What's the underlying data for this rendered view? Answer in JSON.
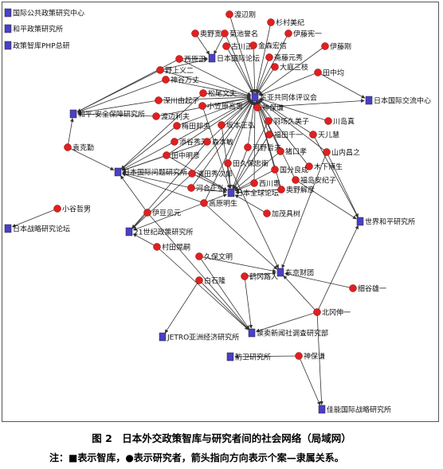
{
  "caption": "图 2　日本外交政策智库与研究者间的社会网络（局域网）",
  "note": "注：■表示智库，●表示研究者，箭头指向方向表示个案—隶属关系。",
  "colors": {
    "org": "#4a3fc6",
    "person": "#e02020",
    "edge": "#333333"
  },
  "nodes": [
    {
      "id": "o1",
      "type": "org",
      "label": "国际公共政策研究中心"
    },
    {
      "id": "o2",
      "type": "org",
      "label": "和平政策研究所"
    },
    {
      "id": "o3",
      "type": "org",
      "label": "政策智库PHP总研"
    },
    {
      "id": "o4",
      "type": "org",
      "label": "日本国际论坛"
    },
    {
      "id": "o5",
      "type": "org",
      "label": "东亚共同体评议会"
    },
    {
      "id": "o6",
      "type": "org",
      "label": "日本国际交流中心"
    },
    {
      "id": "o7",
      "type": "org",
      "label": "和平·安全保障研究所"
    },
    {
      "id": "o8",
      "type": "org",
      "label": "日本国际问题研究所"
    },
    {
      "id": "o9",
      "type": "org",
      "label": "日本全球论坛"
    },
    {
      "id": "o10",
      "type": "org",
      "label": "日本战略研究论坛"
    },
    {
      "id": "o11",
      "type": "org",
      "label": "21世纪政策研究所"
    },
    {
      "id": "o12",
      "type": "org",
      "label": "世界和平研究所"
    },
    {
      "id": "o13",
      "type": "org",
      "label": "东京财团"
    },
    {
      "id": "o14",
      "type": "org",
      "label": "JETRO亚洲经济研究所"
    },
    {
      "id": "o15",
      "type": "org",
      "label": "读卖新闻社调查研究部"
    },
    {
      "id": "o16",
      "type": "org",
      "label": "防卫研究所"
    },
    {
      "id": "o17",
      "type": "org",
      "label": "佳能国际战略研究所"
    },
    {
      "id": "p1",
      "type": "person",
      "label": "渡辺刚"
    },
    {
      "id": "p2",
      "type": "person",
      "label": "杉村美纪"
    },
    {
      "id": "p3",
      "type": "person",
      "label": "奥野宽"
    },
    {
      "id": "p4",
      "type": "person",
      "label": "菊池誉名"
    },
    {
      "id": "p5",
      "type": "person",
      "label": "伊藤宪一"
    },
    {
      "id": "p6",
      "type": "person",
      "label": "古川正"
    },
    {
      "id": "p7",
      "type": "person",
      "label": "金森宏信"
    },
    {
      "id": "p8",
      "type": "person",
      "label": "伊藤刚"
    },
    {
      "id": "p9",
      "type": "person",
      "label": "斋藤元秀"
    },
    {
      "id": "p10",
      "type": "person",
      "label": "西原正"
    },
    {
      "id": "p11",
      "type": "person",
      "label": "大庭三枝"
    },
    {
      "id": "p12",
      "type": "person",
      "label": "野上义二"
    },
    {
      "id": "p13",
      "type": "person",
      "label": "田中均"
    },
    {
      "id": "p14",
      "type": "person",
      "label": "神谷万丈"
    },
    {
      "id": "p15",
      "type": "person",
      "label": "松尾文夫"
    },
    {
      "id": "p16",
      "type": "person",
      "label": "深川由起子"
    },
    {
      "id": "p17",
      "type": "person",
      "label": "小笠原高雪"
    },
    {
      "id": "p18",
      "type": "person",
      "label": "神保谦"
    },
    {
      "id": "p19",
      "type": "person",
      "label": "川岛真"
    },
    {
      "id": "p20",
      "type": "person",
      "label": "渡边利夫"
    },
    {
      "id": "p21",
      "type": "person",
      "label": "坂本正弘"
    },
    {
      "id": "p22",
      "type": "person",
      "label": "羽场久美子"
    },
    {
      "id": "p23",
      "type": "person",
      "label": "梅田邦夫"
    },
    {
      "id": "p24",
      "type": "person",
      "label": "福田千一"
    },
    {
      "id": "p25",
      "type": "person",
      "label": "天儿慧"
    },
    {
      "id": "p26",
      "type": "person",
      "label": "袁克勤"
    },
    {
      "id": "p27",
      "type": "person",
      "label": "添谷秀芳"
    },
    {
      "id": "p28",
      "type": "person",
      "label": "森本敏"
    },
    {
      "id": "p29",
      "type": "person",
      "label": "河野哲夫"
    },
    {
      "id": "p30",
      "type": "person",
      "label": "猪口孝"
    },
    {
      "id": "p31",
      "type": "person",
      "label": "山内昌之"
    },
    {
      "id": "p32",
      "type": "person",
      "label": "田中明彦"
    },
    {
      "id": "p33",
      "type": "person",
      "label": "田久保忠衛"
    },
    {
      "id": "p34",
      "type": "person",
      "label": "国分良成"
    },
    {
      "id": "p35",
      "type": "person",
      "label": "木下博生"
    },
    {
      "id": "p36",
      "type": "person",
      "label": "浦田秀次郎"
    },
    {
      "id": "p37",
      "type": "person",
      "label": "西川惠"
    },
    {
      "id": "p38",
      "type": "person",
      "label": "福岛安纪子"
    },
    {
      "id": "p39",
      "type": "person",
      "label": "河合正弘"
    },
    {
      "id": "p40",
      "type": "person",
      "label": "奥野解彦"
    },
    {
      "id": "p41",
      "type": "person",
      "label": "高原明生"
    },
    {
      "id": "p42",
      "type": "person",
      "label": "加茂具树"
    },
    {
      "id": "p43",
      "type": "person",
      "label": "伊豆见元"
    },
    {
      "id": "p44",
      "type": "person",
      "label": "小谷哲男"
    },
    {
      "id": "p45",
      "type": "person",
      "label": "村田晃嗣"
    },
    {
      "id": "p46",
      "type": "person",
      "label": "久保文明"
    },
    {
      "id": "p47",
      "type": "person",
      "label": "鹤冈路人"
    },
    {
      "id": "p48",
      "type": "person",
      "label": "白石隆"
    },
    {
      "id": "p49",
      "type": "person",
      "label": "北冈伸一"
    },
    {
      "id": "p50",
      "type": "person",
      "label": "细谷雄一"
    },
    {
      "id": "p51",
      "type": "person",
      "label": "神保谦"
    }
  ]
}
